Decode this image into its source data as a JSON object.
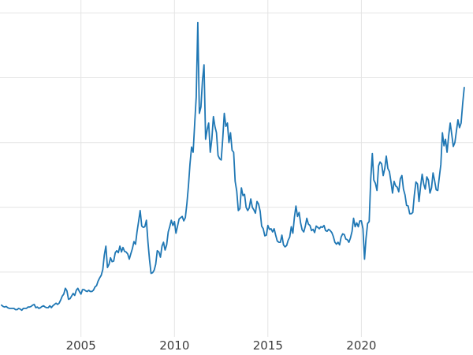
{
  "chart_data": {
    "type": "line",
    "title": "",
    "xlabel": "",
    "ylabel": "",
    "legend": "none",
    "grid": true,
    "line_color": "#1f77b4",
    "grid_color": "#e4e4e4",
    "tick_label_color": "#3d3d3d",
    "x_ticks": [
      2005,
      2010,
      2015,
      2020
    ],
    "x_tick_labels": [
      "2005",
      "2010",
      "2015",
      "2020"
    ],
    "xlim": [
      2000.67,
      2025.97
    ],
    "ylim": [
      0,
      52
    ],
    "y_gridlines": [
      10,
      20,
      30,
      40,
      50
    ],
    "x_start": 2000.75,
    "x_step_years": 0.0833333,
    "series_description": "Precious-metal style price series, monthly values from Oct 2000 to Jul 2025",
    "values": [
      4.9,
      4.7,
      4.6,
      4.7,
      4.5,
      4.4,
      4.4,
      4.4,
      4.4,
      4.2,
      4.2,
      4.4,
      4.3,
      4.1,
      4.4,
      4.4,
      4.4,
      4.6,
      4.6,
      4.7,
      4.9,
      5.0,
      4.5,
      4.6,
      4.4,
      4.5,
      4.7,
      4.8,
      4.6,
      4.5,
      4.5,
      4.8,
      4.5,
      4.8,
      5.0,
      5.2,
      5.0,
      5.2,
      5.7,
      6.3,
      6.6,
      7.5,
      7.1,
      5.8,
      5.9,
      6.3,
      6.7,
      6.4,
      7.2,
      7.5,
      7.0,
      6.6,
      7.3,
      7.3,
      7.1,
      7.0,
      7.2,
      7.0,
      7.0,
      7.2,
      7.7,
      7.9,
      8.6,
      9.1,
      9.5,
      10.4,
      12.6,
      14.0,
      10.7,
      11.2,
      12.2,
      11.6,
      11.7,
      13.0,
      13.3,
      13.0,
      14.0,
      13.1,
      13.8,
      13.2,
      13.1,
      12.8,
      12.0,
      12.8,
      13.6,
      14.7,
      14.3,
      16.2,
      17.8,
      19.5,
      17.1,
      16.9,
      17.0,
      18.0,
      14.6,
      12.0,
      9.8,
      9.9,
      10.3,
      11.2,
      13.3,
      13.1,
      12.3,
      14.0,
      14.6,
      13.4,
      14.2,
      16.2,
      17.0,
      18.0,
      17.2,
      17.8,
      16.0,
      17.1,
      18.2,
      18.4,
      18.6,
      17.9,
      18.4,
      20.6,
      23.4,
      26.7,
      29.3,
      28.5,
      33.0,
      37.0,
      48.5,
      34.5,
      35.5,
      39.5,
      42.0,
      30.5,
      32.0,
      33.0,
      28.5,
      30.5,
      34.0,
      32.5,
      31.5,
      28.0,
      27.5,
      27.3,
      30.5,
      34.5,
      32.5,
      33.0,
      30.0,
      31.5,
      28.8,
      28.5,
      24.0,
      22.5,
      19.5,
      19.8,
      23.0,
      21.8,
      22.0,
      20.0,
      19.5,
      19.9,
      21.3,
      20.0,
      19.6,
      19.1,
      20.9,
      20.5,
      19.4,
      17.1,
      16.7,
      15.6,
      15.7,
      17.2,
      16.6,
      16.7,
      16.2,
      16.7,
      15.7,
      14.8,
      14.6,
      14.6,
      15.7,
      14.2,
      13.9,
      14.1,
      14.9,
      15.4,
      17.0,
      16.0,
      18.4,
      20.2,
      18.6,
      19.2,
      17.6,
      16.5,
      16.2,
      17.1,
      18.3,
      17.4,
      17.2,
      16.4,
      16.6,
      16.1,
      17.1,
      16.9,
      16.7,
      17.0,
      16.9,
      17.2,
      16.4,
      16.3,
      16.6,
      16.4,
      16.1,
      15.5,
      14.6,
      14.3,
      14.6,
      14.2,
      15.4,
      15.9,
      15.8,
      15.1,
      15.0,
      14.6,
      15.3,
      16.3,
      18.3,
      17.0,
      17.6,
      17.0,
      17.9,
      17.9,
      16.7,
      12.0,
      15.2,
      17.5,
      17.8,
      24.4,
      28.3,
      24.2,
      23.7,
      22.6,
      26.4,
      27.0,
      26.7,
      24.9,
      26.0,
      27.9,
      26.0,
      25.5,
      23.9,
      22.2,
      24.0,
      23.3,
      23.1,
      22.4,
      24.4,
      24.9,
      22.8,
      21.9,
      20.3,
      20.2,
      19.0,
      19.0,
      19.2,
      21.9,
      23.9,
      23.6,
      20.9,
      23.2,
      25.1,
      23.6,
      22.8,
      24.7,
      24.2,
      22.2,
      23.0,
      25.3,
      24.1,
      22.7,
      22.6,
      24.6,
      26.6,
      31.5,
      29.5,
      30.5,
      28.5,
      31.0,
      33.0,
      31.3,
      29.4,
      30.0,
      31.8,
      33.5,
      32.3,
      33.0,
      36.0,
      38.5
    ]
  }
}
